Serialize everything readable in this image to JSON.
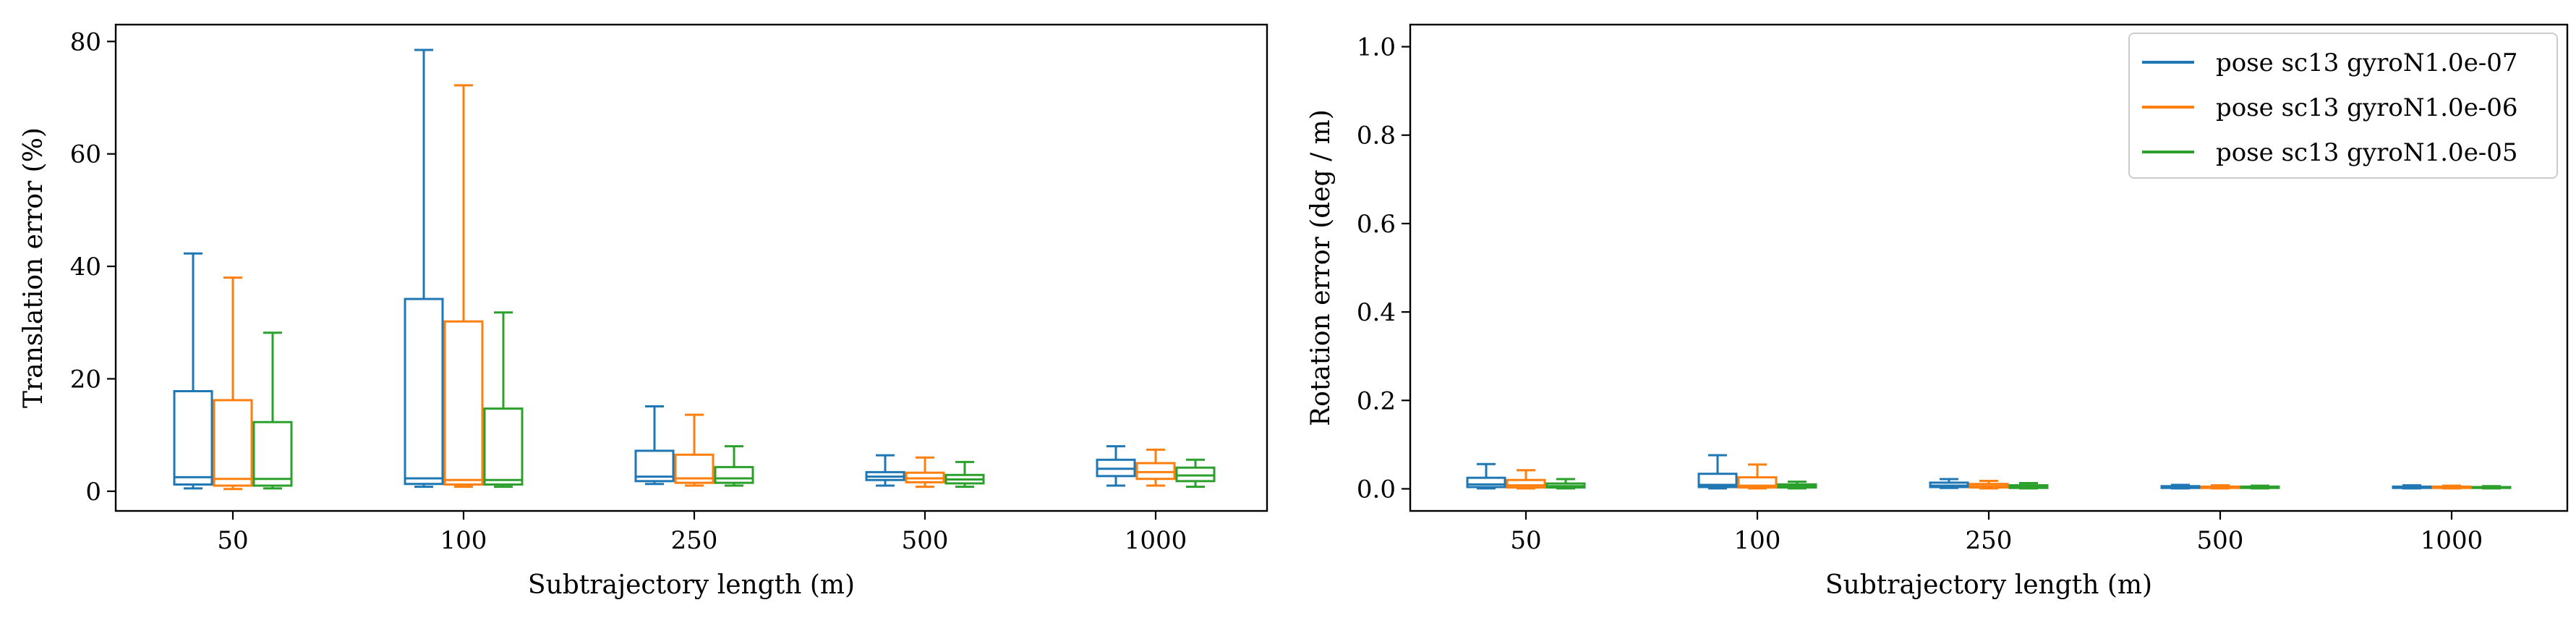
{
  "colors": {
    "series_1": "#1f77b4",
    "series_2": "#ff7f0e",
    "series_3": "#2ca02c",
    "axes": "#000000",
    "background": "#ffffff"
  },
  "chart_data": [
    {
      "type": "box",
      "title": "",
      "xlabel": "Subtrajectory length (m)",
      "ylabel": "Translation error (%)",
      "categories": [
        "50",
        "100",
        "250",
        "500",
        "1000"
      ],
      "ylim": [
        -3.5,
        83
      ],
      "yticks": [
        0,
        20,
        40,
        60,
        80
      ],
      "grid": false,
      "legend": null,
      "series": [
        {
          "name": "pose sc13 gyroN1.0e-07",
          "color": "#1f77b4",
          "boxes": [
            {
              "whislo": 0.5,
              "q1": 1.2,
              "med": 2.5,
              "q3": 17.8,
              "whishi": 42.3
            },
            {
              "whislo": 0.8,
              "q1": 1.3,
              "med": 2.3,
              "q3": 34.2,
              "whishi": 78.5
            },
            {
              "whislo": 1.3,
              "q1": 1.8,
              "med": 2.6,
              "q3": 7.2,
              "whishi": 15.1
            },
            {
              "whislo": 1.0,
              "q1": 2.0,
              "med": 2.6,
              "q3": 3.4,
              "whishi": 6.4
            },
            {
              "whislo": 1.0,
              "q1": 2.7,
              "med": 4.0,
              "q3": 5.6,
              "whishi": 8.0
            }
          ]
        },
        {
          "name": "pose sc13 gyroN1.0e-06",
          "color": "#ff7f0e",
          "boxes": [
            {
              "whislo": 0.4,
              "q1": 1.0,
              "med": 2.2,
              "q3": 16.2,
              "whishi": 38.0
            },
            {
              "whislo": 0.8,
              "q1": 1.2,
              "med": 2.0,
              "q3": 30.2,
              "whishi": 72.2
            },
            {
              "whislo": 1.0,
              "q1": 1.5,
              "med": 2.3,
              "q3": 6.5,
              "whishi": 13.6
            },
            {
              "whislo": 0.8,
              "q1": 1.6,
              "med": 2.3,
              "q3": 3.3,
              "whishi": 6.0
            },
            {
              "whislo": 1.0,
              "q1": 2.2,
              "med": 3.4,
              "q3": 5.0,
              "whishi": 7.4
            }
          ]
        },
        {
          "name": "pose sc13 gyroN1.0e-05",
          "color": "#2ca02c",
          "boxes": [
            {
              "whislo": 0.5,
              "q1": 1.0,
              "med": 2.2,
              "q3": 12.3,
              "whishi": 28.2
            },
            {
              "whislo": 0.8,
              "q1": 1.2,
              "med": 2.0,
              "q3": 14.7,
              "whishi": 31.8
            },
            {
              "whislo": 1.0,
              "q1": 1.5,
              "med": 2.3,
              "q3": 4.3,
              "whishi": 8.0
            },
            {
              "whislo": 0.8,
              "q1": 1.4,
              "med": 2.1,
              "q3": 2.9,
              "whishi": 5.2
            },
            {
              "whislo": 0.8,
              "q1": 1.8,
              "med": 2.8,
              "q3": 4.2,
              "whishi": 5.6
            }
          ]
        }
      ]
    },
    {
      "type": "box",
      "title": "",
      "xlabel": "Subtrajectory length (m)",
      "ylabel": "Rotation error (deg / m)",
      "categories": [
        "50",
        "100",
        "250",
        "500",
        "1000"
      ],
      "ylim": [
        -0.05,
        1.05
      ],
      "yticks": [
        0.0,
        0.2,
        0.4,
        0.6,
        0.8,
        1.0
      ],
      "ytick_labels": [
        "0.0",
        "0.2",
        "0.4",
        "0.6",
        "0.8",
        "1.0"
      ],
      "grid": false,
      "legend": "top-right",
      "series": [
        {
          "name": "pose sc13 gyroN1.0e-07",
          "color": "#1f77b4",
          "boxes": [
            {
              "whislo": 0.001,
              "q1": 0.004,
              "med": 0.01,
              "q3": 0.025,
              "whishi": 0.056
            },
            {
              "whislo": 0.001,
              "q1": 0.004,
              "med": 0.009,
              "q3": 0.034,
              "whishi": 0.076
            },
            {
              "whislo": 0.002,
              "q1": 0.004,
              "med": 0.007,
              "q3": 0.014,
              "whishi": 0.022
            },
            {
              "whislo": 0.001,
              "q1": 0.002,
              "med": 0.004,
              "q3": 0.006,
              "whishi": 0.009
            },
            {
              "whislo": 0.001,
              "q1": 0.002,
              "med": 0.004,
              "q3": 0.005,
              "whishi": 0.008
            }
          ]
        },
        {
          "name": "pose sc13 gyroN1.0e-06",
          "color": "#ff7f0e",
          "boxes": [
            {
              "whislo": 0.001,
              "q1": 0.003,
              "med": 0.008,
              "q3": 0.02,
              "whishi": 0.042
            },
            {
              "whislo": 0.001,
              "q1": 0.003,
              "med": 0.007,
              "q3": 0.026,
              "whishi": 0.055
            },
            {
              "whislo": 0.001,
              "q1": 0.003,
              "med": 0.006,
              "q3": 0.011,
              "whishi": 0.018
            },
            {
              "whislo": 0.001,
              "q1": 0.002,
              "med": 0.004,
              "q3": 0.005,
              "whishi": 0.008
            },
            {
              "whislo": 0.001,
              "q1": 0.002,
              "med": 0.003,
              "q3": 0.005,
              "whishi": 0.007
            }
          ]
        },
        {
          "name": "pose sc13 gyroN1.0e-05",
          "color": "#2ca02c",
          "boxes": [
            {
              "whislo": 0.001,
              "q1": 0.003,
              "med": 0.006,
              "q3": 0.012,
              "whishi": 0.022
            },
            {
              "whislo": 0.001,
              "q1": 0.003,
              "med": 0.006,
              "q3": 0.01,
              "whishi": 0.016
            },
            {
              "whislo": 0.001,
              "q1": 0.002,
              "med": 0.005,
              "q3": 0.008,
              "whishi": 0.013
            },
            {
              "whislo": 0.001,
              "q1": 0.002,
              "med": 0.003,
              "q3": 0.005,
              "whishi": 0.007
            },
            {
              "whislo": 0.001,
              "q1": 0.002,
              "med": 0.003,
              "q3": 0.004,
              "whishi": 0.006
            }
          ]
        }
      ]
    }
  ]
}
